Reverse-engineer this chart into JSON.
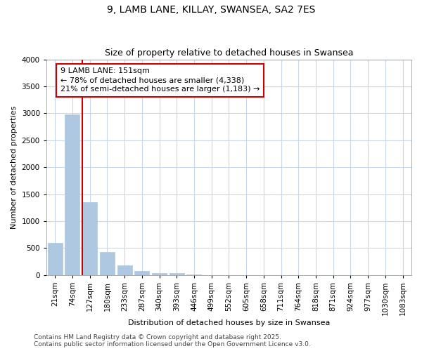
{
  "title": "9, LAMB LANE, KILLAY, SWANSEA, SA2 7ES",
  "subtitle": "Size of property relative to detached houses in Swansea",
  "xlabel": "Distribution of detached houses by size in Swansea",
  "ylabel": "Number of detached properties",
  "bar_labels": [
    "21sqm",
    "74sqm",
    "127sqm",
    "180sqm",
    "233sqm",
    "287sqm",
    "340sqm",
    "393sqm",
    "446sqm",
    "499sqm",
    "552sqm",
    "605sqm",
    "658sqm",
    "711sqm",
    "764sqm",
    "818sqm",
    "871sqm",
    "924sqm",
    "977sqm",
    "1030sqm",
    "1083sqm"
  ],
  "bar_values": [
    600,
    2980,
    1350,
    430,
    185,
    80,
    40,
    30,
    5,
    3,
    1,
    0,
    0,
    0,
    0,
    0,
    0,
    0,
    0,
    0,
    0
  ],
  "bar_color": "#adc8e0",
  "bar_edge_color": "#adc8e0",
  "vline_x_index": 2,
  "annotation_text": "9 LAMB LANE: 151sqm\n← 78% of detached houses are smaller (4,338)\n21% of semi-detached houses are larger (1,183) →",
  "annotation_box_facecolor": "#ffffff",
  "annotation_box_edgecolor": "#cc0000",
  "vline_color": "#cc0000",
  "background_color": "#ffffff",
  "grid_color": "#c8d8e8",
  "ylim": [
    0,
    4000
  ],
  "yticks": [
    0,
    500,
    1000,
    1500,
    2000,
    2500,
    3000,
    3500,
    4000
  ],
  "footer_line1": "Contains HM Land Registry data © Crown copyright and database right 2025.",
  "footer_line2": "Contains public sector information licensed under the Open Government Licence v3.0.",
  "title_fontsize": 10,
  "subtitle_fontsize": 9,
  "axis_label_fontsize": 8,
  "tick_fontsize": 7.5,
  "annotation_fontsize": 8,
  "footer_fontsize": 6.5
}
